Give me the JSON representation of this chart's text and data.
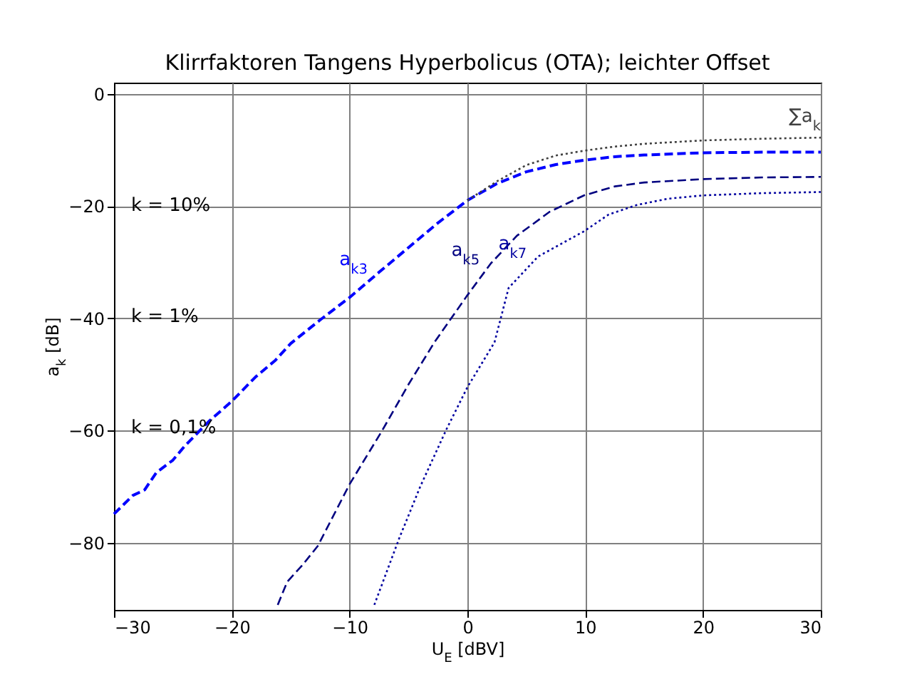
{
  "chart_data": {
    "type": "line",
    "title": "Klirrfaktoren Tangens Hyperbolicus (OTA); leichter Offset",
    "xlabel": "U$_{E}$ [dBV]",
    "ylabel": "a$_{k}$ [dB]",
    "xlim": [
      -30,
      30
    ],
    "ylim": [
      -92,
      2
    ],
    "xticks": [
      -30,
      -20,
      -10,
      0,
      10,
      20,
      30
    ],
    "yticks": [
      -80,
      -60,
      -40,
      -20,
      0
    ],
    "grid": true,
    "legend": false,
    "series": [
      {
        "name": "a$_{k3}$",
        "color": "#0000ff",
        "line_style": "dashed",
        "x": [
          -30,
          -28.4,
          -27.4,
          -26.4,
          -25,
          -24,
          -22,
          -20,
          -18,
          -16.3,
          -15,
          -12.5,
          -10,
          -7.5,
          -5,
          -2.5,
          0,
          2.5,
          5,
          7.5,
          10,
          12.5,
          15,
          20,
          25,
          30
        ],
        "values": [
          -74.9,
          -71.6,
          -70.6,
          -67.5,
          -65.3,
          -62.8,
          -58.5,
          -54.8,
          -50.5,
          -47.5,
          -44.5,
          -40.3,
          -36.3,
          -31.8,
          -27.4,
          -23,
          -19,
          -16,
          -13.9,
          -12.6,
          -11.8,
          -11.2,
          -10.9,
          -10.5,
          -10.4,
          -10.4
        ]
      },
      {
        "name": "a$_{k5}$",
        "color": "#000080",
        "line_style": "dashed",
        "x": [
          -16.1,
          -15.3,
          -14,
          -12.7,
          -10,
          -7.2,
          -5,
          -2.8,
          0,
          2,
          4.2,
          7,
          9.9,
          12.5,
          15,
          20,
          25,
          30
        ],
        "values": [
          -91.1,
          -87,
          -84,
          -80.6,
          -69.6,
          -59.9,
          -51.8,
          -44.3,
          -35.9,
          -30.2,
          -25.3,
          -21,
          -18.1,
          -16.5,
          -15.8,
          -15.2,
          -14.9,
          -14.8
        ]
      },
      {
        "name": "a$_{k7}$",
        "color": "#0000a0",
        "line_style": "dotted",
        "x": [
          -7.9,
          -5.8,
          -4,
          -1.8,
          0,
          2.3,
          3.5,
          6,
          9.9,
          12,
          14.4,
          17,
          20,
          25,
          30
        ],
        "values": [
          -91.1,
          -79.3,
          -70,
          -59.9,
          -52.3,
          -44.3,
          -34.6,
          -29,
          -24.5,
          -21.5,
          -19.8,
          -18.7,
          -18.1,
          -17.7,
          -17.5
        ]
      },
      {
        "name": "∑a$_{k}$",
        "color": "#404040",
        "line_style": "dotted",
        "x": [
          0,
          2.5,
          5,
          7.5,
          10,
          12.5,
          15,
          20,
          25,
          30
        ],
        "values": [
          -19,
          -15.6,
          -12.7,
          -11,
          -10.1,
          -9.4,
          -8.9,
          -8.3,
          -8,
          -7.8
        ]
      }
    ],
    "annotations": [
      "k = 10%",
      "k = 1%",
      "k = 0,1%"
    ]
  }
}
